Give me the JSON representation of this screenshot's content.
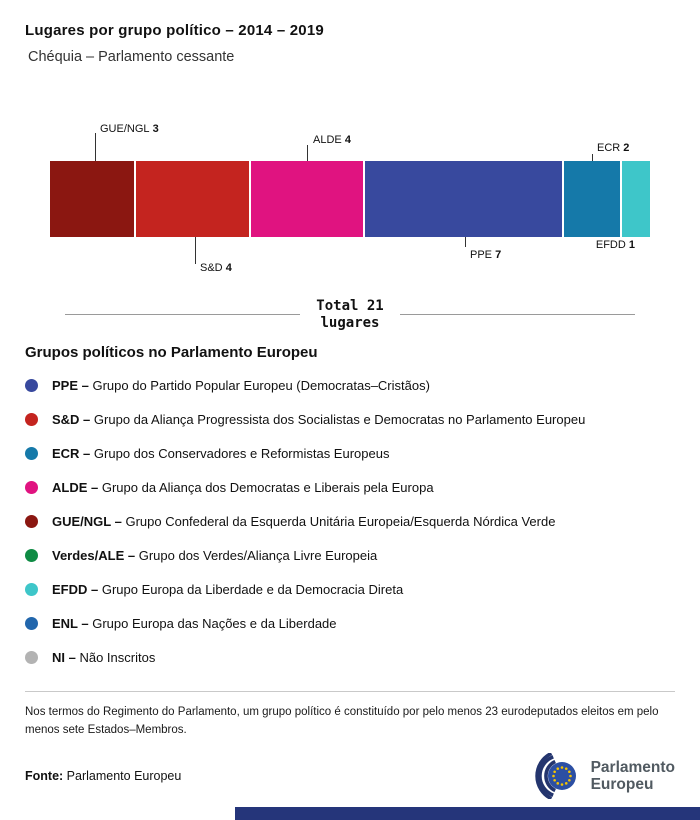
{
  "header": {
    "title": "Lugares por grupo político – 2014 – 2019",
    "subtitle": "Chéquia – Parlamento cessante"
  },
  "chart_data": {
    "type": "bar",
    "orientation": "horizontal-stacked",
    "title": "Lugares por grupo político – 2014 – 2019",
    "subtitle": "Chéquia – Parlamento cessante",
    "total": 21,
    "total_label": "Total 21",
    "total_sublabel": "lugares",
    "segments": [
      {
        "group": "GUE/NGL",
        "seats": 3,
        "color": "#8b1711",
        "callout": "above"
      },
      {
        "group": "S&D",
        "seats": 4,
        "color": "#c4241f",
        "callout": "below"
      },
      {
        "group": "ALDE",
        "seats": 4,
        "color": "#e01380",
        "callout": "above"
      },
      {
        "group": "PPE",
        "seats": 7,
        "color": "#38499e",
        "callout": "below"
      },
      {
        "group": "ECR",
        "seats": 2,
        "color": "#1579a9",
        "callout": "above"
      },
      {
        "group": "EFDD",
        "seats": 1,
        "color": "#3ec6c9",
        "callout": "below"
      }
    ]
  },
  "legend": {
    "heading": "Grupos políticos no Parlamento Europeu",
    "items": [
      {
        "abbr": "PPE –",
        "desc": "Grupo do Partido Popular Europeu (Democratas–Cristãos)",
        "color": "#38499e"
      },
      {
        "abbr": "S&D –",
        "desc": "Grupo da Aliança Progressista dos Socialistas e Democratas no Parlamento Europeu",
        "color": "#c4241f"
      },
      {
        "abbr": "ECR –",
        "desc": "Grupo dos Conservadores e Reformistas Europeus",
        "color": "#1579a9"
      },
      {
        "abbr": "ALDE –",
        "desc": "Grupo da Aliança dos Democratas e Liberais pela Europa",
        "color": "#e01380"
      },
      {
        "abbr": "GUE/NGL –",
        "desc": "Grupo Confederal da Esquerda Unitária Europeia/Esquerda Nórdica Verde",
        "color": "#8b1711"
      },
      {
        "abbr": "Verdes/ALE –",
        "desc": "Grupo dos Verdes/Aliança Livre Europeia",
        "color": "#0f8b44"
      },
      {
        "abbr": "EFDD –",
        "desc": "Grupo Europa da Liberdade e da Democracia Direta",
        "color": "#3ec6c9"
      },
      {
        "abbr": "ENL –",
        "desc": "Grupo Europa das Nações e da Liberdade",
        "color": "#2166ac"
      },
      {
        "abbr": "NI –",
        "desc": "Não Inscritos",
        "color": "#b3b3b3"
      }
    ]
  },
  "footnote": "Nos termos do Regimento do Parlamento, um grupo político é constituído por pelo menos 23 eurodeputados eleitos em pelo menos sete Estados–Membros.",
  "footer": {
    "source_label": "Fonte:",
    "source_value": "Parlamento Europeu",
    "logo_line1": "Parlamento",
    "logo_line2": "Europeu"
  }
}
